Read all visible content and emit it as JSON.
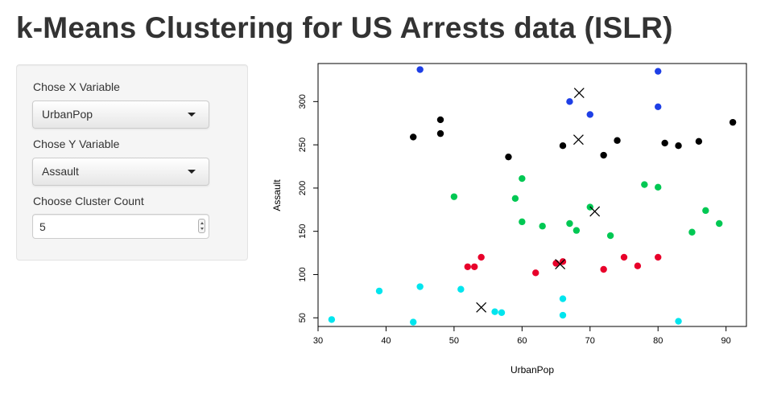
{
  "page": {
    "title": "k-Means Clustering for US Arrests data (ISLR)"
  },
  "sidebar": {
    "x_label": "Chose X Variable",
    "x_value": "UrbanPop",
    "y_label": "Chose Y Variable",
    "y_value": "Assault",
    "cluster_label": "Choose Cluster Count",
    "cluster_value": "5"
  },
  "icons": {
    "dropdown": "chevron-down-icon",
    "stepper": "spinner-icon"
  },
  "chart_data": {
    "type": "scatter",
    "xlabel": "UrbanPop",
    "ylabel": "Assault",
    "xlim": [
      30,
      93
    ],
    "ylim": [
      40,
      344
    ],
    "xticks": [
      30,
      40,
      50,
      60,
      70,
      80,
      90
    ],
    "yticks": [
      50,
      100,
      150,
      200,
      250,
      300
    ],
    "grid": false,
    "series": [
      {
        "color": "#000000",
        "points": [
          [
            44,
            259
          ],
          [
            48,
            279
          ],
          [
            48,
            263
          ],
          [
            58,
            236
          ],
          [
            66,
            249
          ],
          [
            72,
            238
          ],
          [
            74,
            255
          ],
          [
            81,
            252
          ],
          [
            83,
            249
          ],
          [
            86,
            254
          ],
          [
            91,
            276
          ]
        ]
      },
      {
        "color": "#1e3fe6",
        "points": [
          [
            45,
            337
          ],
          [
            67,
            300
          ],
          [
            70,
            285
          ],
          [
            80,
            335
          ],
          [
            80,
            294
          ]
        ]
      },
      {
        "color": "#00c853",
        "points": [
          [
            50,
            190
          ],
          [
            59,
            188
          ],
          [
            60,
            211
          ],
          [
            60,
            161
          ],
          [
            63,
            156
          ],
          [
            67,
            159
          ],
          [
            68,
            151
          ],
          [
            70,
            178
          ],
          [
            73,
            145
          ],
          [
            78,
            204
          ],
          [
            80,
            201
          ],
          [
            85,
            149
          ],
          [
            87,
            174
          ],
          [
            89,
            159
          ]
        ]
      },
      {
        "color": "#e8002a",
        "points": [
          [
            52,
            109
          ],
          [
            53,
            109
          ],
          [
            54,
            120
          ],
          [
            62,
            102
          ],
          [
            65,
            113
          ],
          [
            66,
            115
          ],
          [
            72,
            106
          ],
          [
            75,
            120
          ],
          [
            77,
            110
          ],
          [
            80,
            120
          ]
        ]
      },
      {
        "color": "#00e5ee",
        "points": [
          [
            32,
            48
          ],
          [
            39,
            81
          ],
          [
            44,
            45
          ],
          [
            45,
            86
          ],
          [
            51,
            83
          ],
          [
            56,
            57
          ],
          [
            57,
            56
          ],
          [
            66,
            72
          ],
          [
            66,
            53
          ],
          [
            83,
            46
          ]
        ]
      }
    ],
    "centers": [
      [
        68.4,
        310
      ],
      [
        68.3,
        256
      ],
      [
        70.7,
        173
      ],
      [
        65.6,
        112
      ],
      [
        54,
        62
      ]
    ]
  }
}
